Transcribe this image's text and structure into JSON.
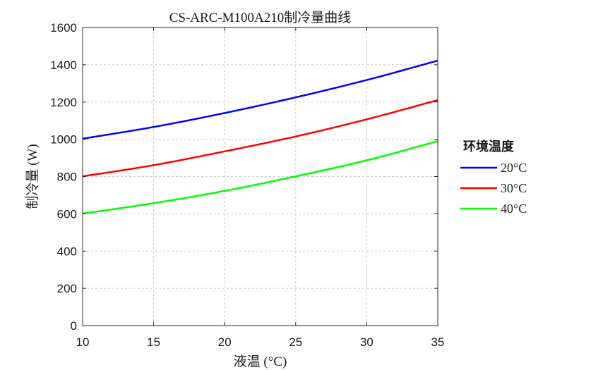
{
  "chart_data": {
    "type": "line",
    "title": "CS-ARC-M100A210制冷量曲线",
    "xlabel": "液温 (°C)",
    "ylabel": "制冷量 (W)",
    "xlim": [
      10,
      35
    ],
    "ylim": [
      0,
      1600
    ],
    "xticks": [
      "10",
      "15",
      "20",
      "25",
      "30",
      "35"
    ],
    "yticks": [
      "0",
      "200",
      "400",
      "600",
      "800",
      "1000",
      "1200",
      "1400",
      "1600"
    ],
    "grid": true,
    "legend": {
      "title": "环境温度",
      "placement": "right"
    },
    "x": [
      10,
      15,
      20,
      25,
      30,
      35
    ],
    "series": [
      {
        "name": "20°C",
        "color": "#0000ff",
        "values": [
          1003,
          1066,
          1141,
          1225,
          1318,
          1422
        ]
      },
      {
        "name": "30°C",
        "color": "#ff0000",
        "values": [
          801,
          861,
          935,
          1015,
          1107,
          1210
        ]
      },
      {
        "name": "40°C",
        "color": "#00ff00",
        "values": [
          601,
          657,
          723,
          801,
          887,
          990
        ]
      }
    ]
  }
}
